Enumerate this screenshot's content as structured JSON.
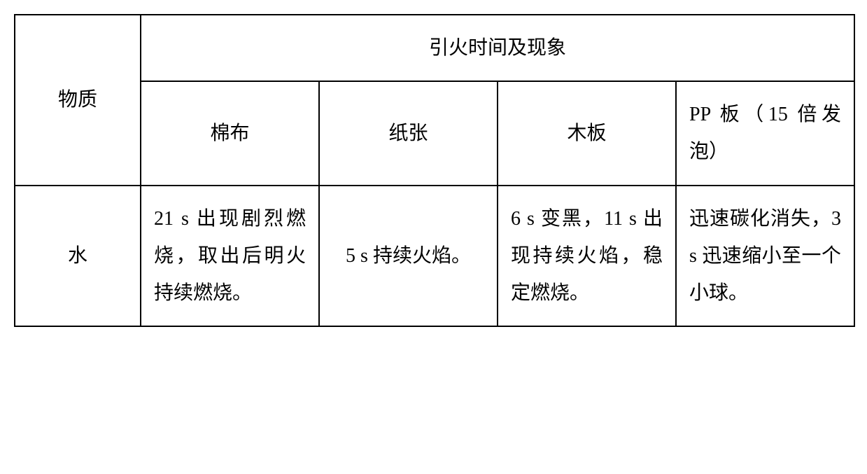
{
  "table": {
    "border_color": "#000000",
    "background_color": "#ffffff",
    "text_color": "#000000",
    "font_size": 28,
    "font_family": "SimSun, serif",
    "border_width": 2,
    "header": {
      "row_header": "物质",
      "group_header": "引火时间及现象",
      "columns": [
        "棉布",
        "纸张",
        "木板",
        "PP 板（15 倍发泡）"
      ]
    },
    "rows": [
      {
        "label": "水",
        "cells": [
          "21 s 出现剧烈燃烧，取出后明火持续燃烧。",
          "5 s 持续火焰。",
          "6 s 变黑，11 s 出现持续火焰，稳定燃烧。",
          "迅速碳化消失，3 s 迅速缩小至一个小球。"
        ]
      }
    ],
    "column_widths": [
      "180px",
      "255px",
      "255px",
      "255px",
      "255px"
    ]
  }
}
